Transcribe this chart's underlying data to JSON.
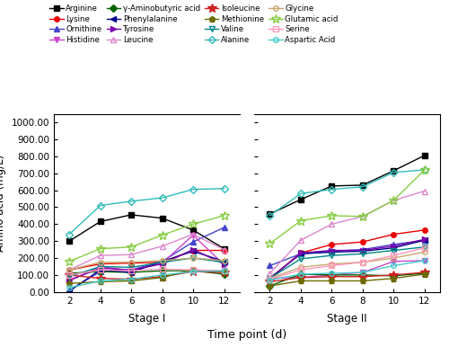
{
  "x_labels_stage1": [
    "2",
    "4",
    "6",
    "8",
    "10",
    "12"
  ],
  "x_labels_stage2": [
    "2",
    "4",
    "6",
    "8",
    "10",
    "12"
  ],
  "series": {
    "Arginine": {
      "color": "#000000",
      "marker": "s",
      "fillstyle": "full",
      "linestyle": "-",
      "values": [
        300,
        415,
        455,
        435,
        365,
        255,
        460,
        545,
        625,
        630,
        715,
        805
      ]
    },
    "Lysine": {
      "color": "#ee0000",
      "marker": "o",
      "fillstyle": "full",
      "linestyle": "-",
      "values": [
        130,
        165,
        170,
        175,
        245,
        245,
        80,
        230,
        280,
        295,
        340,
        365
      ]
    },
    "Ornithine": {
      "color": "#4444cc",
      "marker": "^",
      "fillstyle": "full",
      "linestyle": "-",
      "values": [
        10,
        120,
        130,
        180,
        295,
        380,
        155,
        225,
        240,
        250,
        280,
        305
      ]
    },
    "Histidine": {
      "color": "#cc44cc",
      "marker": "v",
      "fillstyle": "full",
      "linestyle": "-",
      "values": [
        65,
        150,
        125,
        170,
        335,
        160,
        80,
        85,
        100,
        115,
        180,
        185
      ]
    },
    "gamma-Aminobutyric acid": {
      "color": "#006400",
      "marker": "D",
      "fillstyle": "full",
      "linestyle": "-",
      "values": [
        110,
        120,
        115,
        125,
        125,
        105,
        35,
        105,
        100,
        100,
        95,
        110
      ]
    },
    "Phenylalanine": {
      "color": "#00008B",
      "marker": "<",
      "fillstyle": "full",
      "linestyle": "-",
      "values": [
        5,
        130,
        115,
        180,
        240,
        180,
        80,
        225,
        235,
        240,
        260,
        305
      ]
    },
    "Tyrosine": {
      "color": "#7700aa",
      "marker": ">",
      "fillstyle": "full",
      "linestyle": "-",
      "values": [
        70,
        140,
        130,
        165,
        250,
        165,
        75,
        230,
        245,
        245,
        270,
        310
      ]
    },
    "Leucine": {
      "color": "#dd88cc",
      "marker": "^",
      "fillstyle": "none",
      "linestyle": "-",
      "values": [
        130,
        215,
        220,
        270,
        340,
        250,
        110,
        305,
        400,
        445,
        540,
        595
      ]
    },
    "Isoleucine": {
      "color": "#cc2222",
      "marker": "*",
      "fillstyle": "full",
      "linestyle": "-",
      "values": [
        100,
        80,
        75,
        90,
        120,
        115,
        60,
        85,
        90,
        90,
        100,
        115
      ]
    },
    "Methionine": {
      "color": "#6b6b00",
      "marker": "p",
      "fillstyle": "full",
      "linestyle": "-",
      "values": [
        50,
        60,
        65,
        85,
        130,
        120,
        35,
        65,
        65,
        65,
        80,
        105
      ]
    },
    "Valine": {
      "color": "#008888",
      "marker": "v",
      "fillstyle": "none",
      "linestyle": "-",
      "values": [
        90,
        150,
        145,
        175,
        200,
        175,
        80,
        195,
        215,
        225,
        245,
        265
      ]
    },
    "Alanine": {
      "color": "#33bbbb",
      "marker": "D",
      "fillstyle": "none",
      "linestyle": "-",
      "values": [
        340,
        510,
        535,
        555,
        605,
        610,
        450,
        580,
        605,
        620,
        705,
        720
      ]
    },
    "Glycine": {
      "color": "#c8a870",
      "marker": "o",
      "fillstyle": "none",
      "linestyle": "-",
      "values": [
        130,
        175,
        175,
        185,
        200,
        185,
        80,
        145,
        165,
        175,
        200,
        235
      ]
    },
    "Glutamic acid": {
      "color": "#88cc44",
      "marker": "*",
      "fillstyle": "none",
      "linestyle": "-",
      "values": [
        180,
        255,
        265,
        335,
        400,
        450,
        285,
        420,
        450,
        445,
        540,
        720
      ]
    },
    "Serine": {
      "color": "#ff99bb",
      "marker": "s",
      "fillstyle": "none",
      "linestyle": "-",
      "values": [
        100,
        130,
        125,
        135,
        130,
        125,
        75,
        130,
        155,
        175,
        215,
        260
      ]
    },
    "Aspartic Acid": {
      "color": "#44cccc",
      "marker": "o",
      "fillstyle": "none",
      "linestyle": "-",
      "values": [
        25,
        65,
        75,
        100,
        120,
        125,
        70,
        105,
        110,
        115,
        155,
        185
      ]
    }
  },
  "legend_order": [
    "Arginine",
    "Lysine",
    "Ornithine",
    "Histidine",
    "gamma-Aminobutyric acid",
    "Phenylalanine",
    "Tyrosine",
    "Leucine",
    "Isoleucine",
    "Methionine",
    "Valine",
    "Alanine",
    "Glycine",
    "Glutamic acid",
    "Serine",
    "Aspartic Acid"
  ],
  "display_names": {
    "gamma-Aminobutyric acid": "γ-Aminobutyric acid"
  },
  "ylabel": "Amino acid (mg/L)",
  "xlabel": "Time point (d)",
  "ylim": [
    0,
    1050
  ],
  "yticks": [
    0,
    100,
    200,
    300,
    400,
    500,
    600,
    700,
    800,
    900,
    1000
  ],
  "ytick_labels": [
    "0.00",
    "100.00",
    "200.00",
    "300.00",
    "400.00",
    "500.00",
    "600.00",
    "700.00",
    "800.00",
    "900.00",
    "1000.00"
  ],
  "stage1_label": "Stage I",
  "stage2_label": "Stage II",
  "figsize": [
    5.0,
    3.96
  ],
  "dpi": 100
}
